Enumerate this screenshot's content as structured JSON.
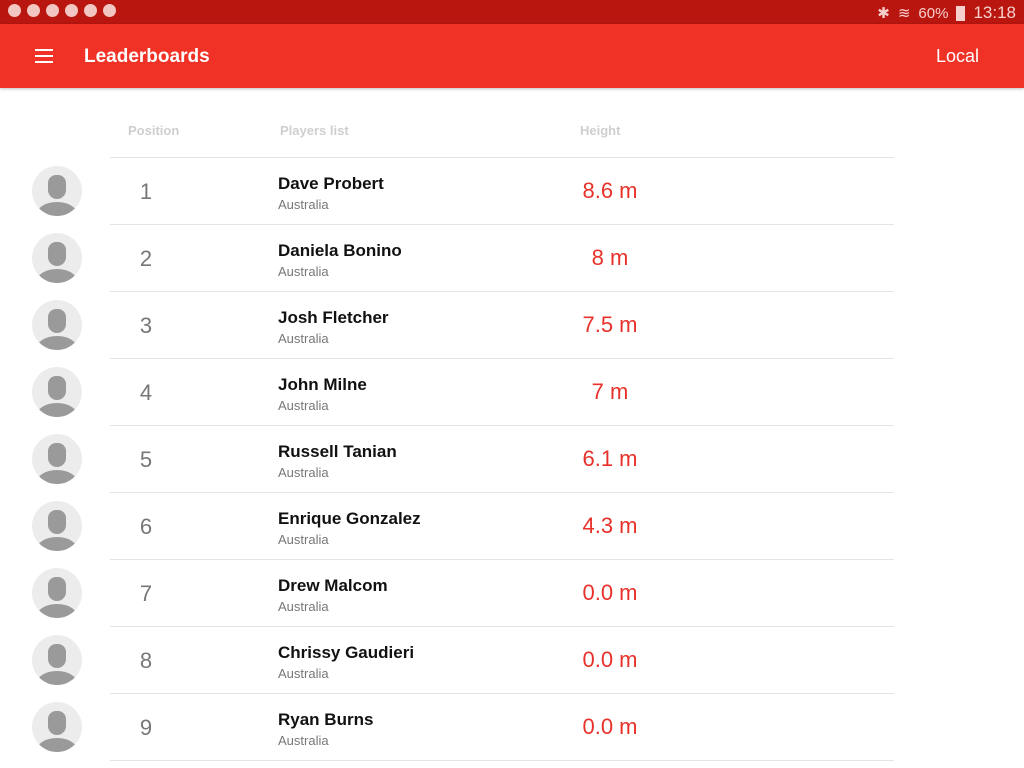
{
  "status_bar": {
    "battery": "60%",
    "time": "13:18"
  },
  "app_bar": {
    "title": "Leaderboards",
    "action": "Local"
  },
  "columns": {
    "position": "Position",
    "players": "Players list",
    "height": "Height"
  },
  "accent_color": "#f03226",
  "rows": [
    {
      "position": "1",
      "name": "Dave Probert",
      "country": "Australia",
      "height": "8.6 m"
    },
    {
      "position": "2",
      "name": "Daniela Bonino",
      "country": "Australia",
      "height": "8 m"
    },
    {
      "position": "3",
      "name": "Josh Fletcher",
      "country": "Australia",
      "height": "7.5 m"
    },
    {
      "position": "4",
      "name": "John Milne",
      "country": "Australia",
      "height": "7 m"
    },
    {
      "position": "5",
      "name": "Russell Tanian",
      "country": "Australia",
      "height": "6.1 m"
    },
    {
      "position": "6",
      "name": "Enrique Gonzalez",
      "country": "Australia",
      "height": "4.3 m"
    },
    {
      "position": "7",
      "name": "Drew Malcom",
      "country": "Australia",
      "height": "0.0 m"
    },
    {
      "position": "8",
      "name": "Chrissy Gaudieri",
      "country": "Australia",
      "height": "0.0 m"
    },
    {
      "position": "9",
      "name": "Ryan Burns",
      "country": "Australia",
      "height": "0.0 m"
    }
  ]
}
